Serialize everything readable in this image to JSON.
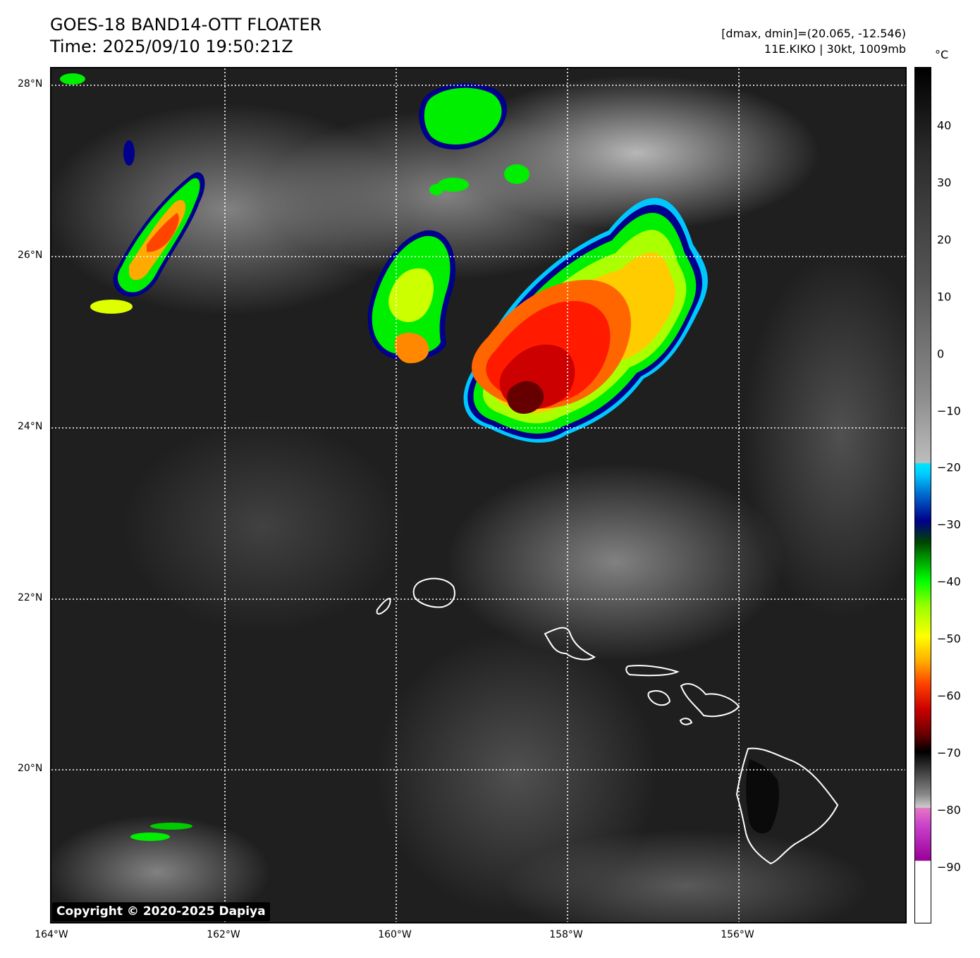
{
  "header": {
    "title_line1": "GOES-18 BAND14-OTT FLOATER",
    "title_line2": "Time: 2025/09/10 19:50:21Z",
    "info_line1": "[dmax, dmin]=(20.065, -12.546)",
    "info_line2": "11E.KIKO | 30kt, 1009mb"
  },
  "map": {
    "extent": {
      "lon_min": -164,
      "lon_max": -154,
      "lat_min": 18.2,
      "lat_max": 28.2
    },
    "grid": "dotted-white",
    "lat_labels": [
      "28°N",
      "26°N",
      "24°N",
      "22°N",
      "20°N"
    ],
    "lon_labels": [
      "164°W",
      "162°W",
      "160°W",
      "158°W",
      "156°W"
    ],
    "copyright": "Copyright © 2020-2025 Dapiya"
  },
  "colorbar": {
    "unit": "°C",
    "ticks": [
      "40",
      "30",
      "20",
      "10",
      "0",
      "−10",
      "−20",
      "−30",
      "−40",
      "−50",
      "−60",
      "−70",
      "−80",
      "−90"
    ]
  }
}
